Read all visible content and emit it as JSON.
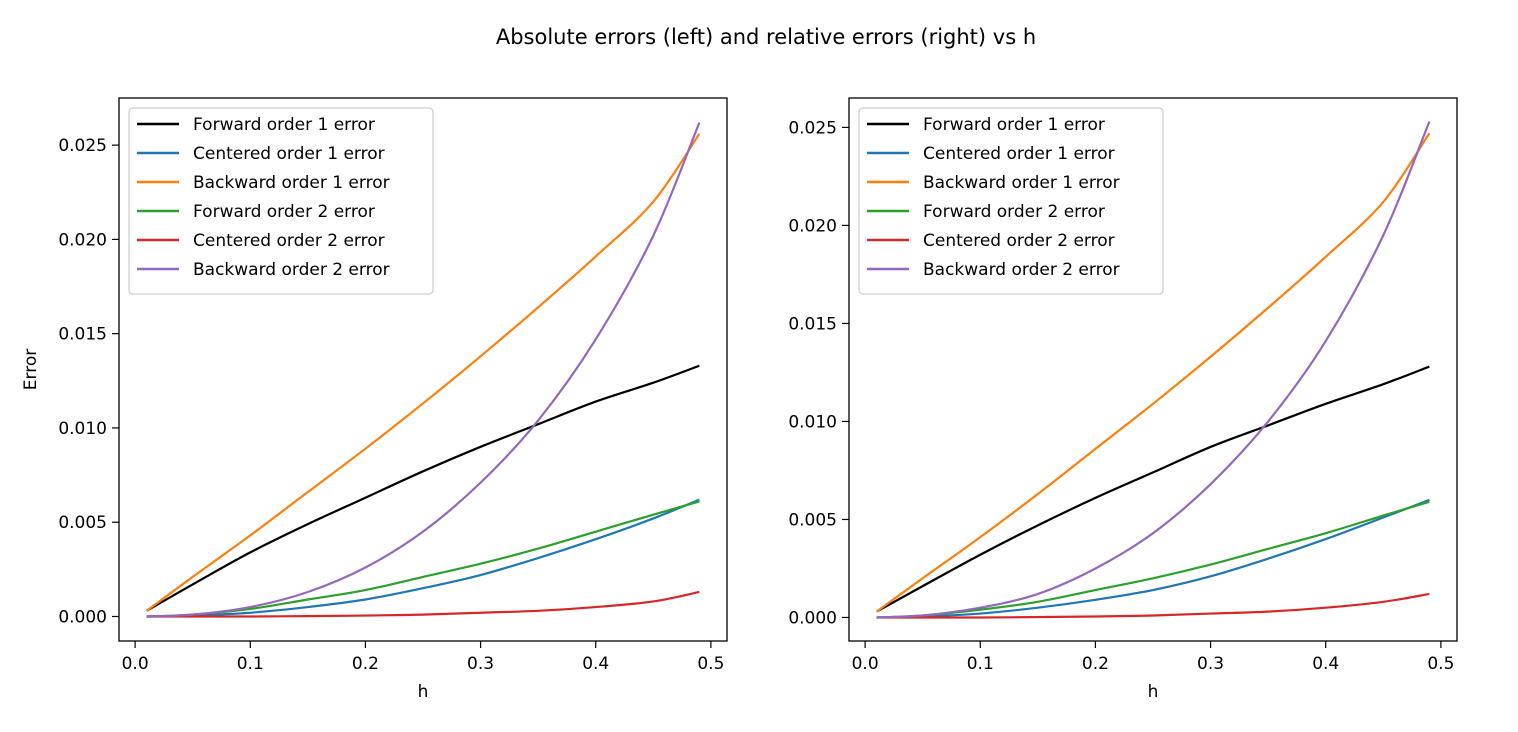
{
  "figure": {
    "suptitle": "Absolute errors (left) and relative errors (right) vs h"
  },
  "chart_data": [
    {
      "type": "line",
      "title": "",
      "xlabel": "h",
      "ylabel": "Error",
      "xlim": [
        -0.014,
        0.514
      ],
      "ylim": [
        -0.0013,
        0.0275
      ],
      "xticks": [
        0.0,
        0.1,
        0.2,
        0.3,
        0.4,
        0.5
      ],
      "xtick_labels": [
        "0.0",
        "0.1",
        "0.2",
        "0.3",
        "0.4",
        "0.5"
      ],
      "yticks": [
        0.0,
        0.005,
        0.01,
        0.015,
        0.02,
        0.025
      ],
      "ytick_labels": [
        "0.000",
        "0.005",
        "0.010",
        "0.015",
        "0.020",
        "0.025"
      ],
      "grid": false,
      "legend_position": "upper left",
      "x": [
        0.01,
        0.05,
        0.1,
        0.15,
        0.2,
        0.25,
        0.3,
        0.35,
        0.4,
        0.45,
        0.49
      ],
      "series": [
        {
          "name": "Forward order 1 error",
          "color": "#000000",
          "values": [
            0.0003,
            0.0017,
            0.0034,
            0.0049,
            0.0063,
            0.0077,
            0.009,
            0.0102,
            0.0114,
            0.0124,
            0.0133
          ]
        },
        {
          "name": "Centered order 1 error",
          "color": "#1f77b4",
          "values": [
            0.0,
            5e-05,
            0.0002,
            0.0005,
            0.0009,
            0.0015,
            0.0022,
            0.0031,
            0.0041,
            0.0052,
            0.0062
          ]
        },
        {
          "name": "Backward order 1 error",
          "color": "#ff7f0e",
          "values": [
            0.0003,
            0.0021,
            0.0043,
            0.0066,
            0.0089,
            0.0113,
            0.0138,
            0.0164,
            0.0191,
            0.022,
            0.0256
          ]
        },
        {
          "name": "Forward order 2 error",
          "color": "#2ca02c",
          "values": [
            0.0,
            0.0001,
            0.0004,
            0.0009,
            0.0014,
            0.0021,
            0.0028,
            0.0036,
            0.0045,
            0.0054,
            0.0061
          ]
        },
        {
          "name": "Centered order 2 error",
          "color": "#d62728",
          "values": [
            0.0,
            0.0,
            0.0,
            2e-05,
            5e-05,
            0.0001,
            0.0002,
            0.0003,
            0.0005,
            0.0008,
            0.0013
          ]
        },
        {
          "name": "Backward order 2 error",
          "color": "#9467bd",
          "values": [
            0.0,
            0.0001,
            0.0005,
            0.0013,
            0.0026,
            0.0045,
            0.0071,
            0.0104,
            0.0147,
            0.0202,
            0.0262
          ]
        }
      ]
    },
    {
      "type": "line",
      "title": "",
      "xlabel": "h",
      "ylabel": "",
      "xlim": [
        -0.014,
        0.514
      ],
      "ylim": [
        -0.0012,
        0.0265
      ],
      "xticks": [
        0.0,
        0.1,
        0.2,
        0.3,
        0.4,
        0.5
      ],
      "xtick_labels": [
        "0.0",
        "0.1",
        "0.2",
        "0.3",
        "0.4",
        "0.5"
      ],
      "yticks": [
        0.0,
        0.005,
        0.01,
        0.015,
        0.02,
        0.025
      ],
      "ytick_labels": [
        "0.000",
        "0.005",
        "0.010",
        "0.015",
        "0.020",
        "0.025"
      ],
      "grid": false,
      "legend_position": "upper left",
      "x": [
        0.01,
        0.05,
        0.1,
        0.15,
        0.2,
        0.25,
        0.3,
        0.35,
        0.4,
        0.45,
        0.49
      ],
      "series": [
        {
          "name": "Forward order 1 error",
          "color": "#000000",
          "values": [
            0.0003,
            0.0016,
            0.0032,
            0.0047,
            0.0061,
            0.0074,
            0.0087,
            0.0098,
            0.0109,
            0.0119,
            0.0128
          ]
        },
        {
          "name": "Centered order 1 error",
          "color": "#1f77b4",
          "values": [
            0.0,
            5e-05,
            0.0002,
            0.0005,
            0.0009,
            0.0014,
            0.0021,
            0.003,
            0.004,
            0.0051,
            0.006
          ]
        },
        {
          "name": "Backward order 1 error",
          "color": "#ff7f0e",
          "values": [
            0.0003,
            0.002,
            0.0041,
            0.0063,
            0.0086,
            0.0109,
            0.0133,
            0.0158,
            0.0184,
            0.0212,
            0.0247
          ]
        },
        {
          "name": "Forward order 2 error",
          "color": "#2ca02c",
          "values": [
            0.0,
            0.0001,
            0.0004,
            0.0008,
            0.0014,
            0.002,
            0.0027,
            0.0035,
            0.0043,
            0.0052,
            0.0059
          ]
        },
        {
          "name": "Centered order 2 error",
          "color": "#d62728",
          "values": [
            0.0,
            0.0,
            0.0,
            2e-05,
            5e-05,
            0.0001,
            0.0002,
            0.0003,
            0.0005,
            0.0008,
            0.0012
          ]
        },
        {
          "name": "Backward order 2 error",
          "color": "#9467bd",
          "values": [
            0.0,
            0.0001,
            0.0005,
            0.0012,
            0.0025,
            0.0043,
            0.0068,
            0.01,
            0.0141,
            0.0195,
            0.0253
          ]
        }
      ]
    }
  ]
}
